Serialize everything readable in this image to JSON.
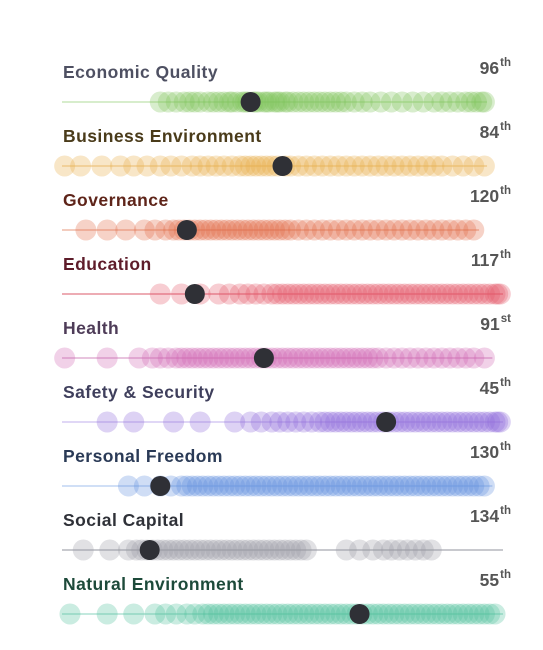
{
  "chart_data": {
    "type": "scatter",
    "title": "",
    "x_axis_direction": "rank 167 on the left, rank 1 on the right",
    "x_range": [
      167,
      1
    ],
    "highlight_color": "#2f3036",
    "rows": [
      {
        "label": "Economic Quality",
        "rank_num": "96",
        "rank_suffix": "th",
        "rank": 96,
        "color": "#7fc45a",
        "label_color": "#4e5062",
        "line_color": "#bfe2ad",
        "line_from": 167,
        "line_to": 7,
        "points": [
          130,
          127,
          124,
          121,
          119,
          117,
          115,
          112,
          110,
          108,
          106,
          104,
          103,
          101,
          99,
          98,
          97,
          95,
          94,
          93,
          91,
          90,
          89,
          87,
          86,
          85,
          83,
          82,
          80,
          78,
          76,
          74,
          72,
          70,
          68,
          66,
          64,
          62,
          60,
          57,
          54,
          51,
          47,
          43,
          39,
          35,
          31,
          27,
          24,
          21,
          18,
          15,
          13,
          11,
          9,
          8
        ]
      },
      {
        "label": "Business Environment",
        "rank_num": "84",
        "rank_suffix": "th",
        "rank": 84,
        "color": "#e8ad45",
        "label_color": "#4a3b1a",
        "line_color": "#f0cf96",
        "line_from": 167,
        "line_to": 7,
        "points": [
          166,
          160,
          152,
          145,
          140,
          135,
          130,
          126,
          122,
          118,
          115,
          112,
          109,
          106,
          103,
          100,
          98,
          96,
          94,
          92,
          90,
          88,
          86,
          83,
          81,
          78,
          75,
          72,
          69,
          66,
          63,
          60,
          57,
          54,
          51,
          48,
          45,
          42,
          39,
          36,
          33,
          30,
          27,
          24,
          20,
          16,
          12,
          8
        ]
      },
      {
        "label": "Governance",
        "rank_num": "120",
        "rank_suffix": "th",
        "rank": 120,
        "color": "#e06a45",
        "label_color": "#5e2419",
        "line_color": "#ecae98",
        "line_from": 167,
        "line_to": 10,
        "points": [
          158,
          150,
          143,
          136,
          132,
          128,
          125,
          123,
          121,
          119,
          117,
          115,
          113,
          111,
          109,
          107,
          105,
          103,
          101,
          99,
          97,
          95,
          93,
          91,
          89,
          87,
          85,
          83,
          81,
          78,
          75,
          72,
          69,
          66,
          63,
          60,
          57,
          54,
          51,
          48,
          45,
          42,
          39,
          36,
          33,
          30,
          27,
          24,
          21,
          18,
          15,
          12
        ]
      },
      {
        "label": "Education",
        "rank_num": "117",
        "rank_suffix": "th",
        "rank": 117,
        "color": "#e4596a",
        "label_color": "#5e1c2a",
        "line_color": "#e27a88",
        "line_from": 167,
        "line_to": 1,
        "points": [
          130,
          122,
          115,
          108,
          104,
          100,
          97,
          94,
          91,
          88,
          86,
          84,
          82,
          80,
          78,
          76,
          74,
          72,
          70,
          68,
          66,
          64,
          62,
          60,
          58,
          56,
          54,
          52,
          50,
          48,
          46,
          44,
          42,
          40,
          38,
          36,
          34,
          32,
          30,
          28,
          26,
          24,
          22,
          20,
          18,
          16,
          14,
          12,
          10,
          8,
          6,
          4,
          3,
          2
        ]
      },
      {
        "label": "Health",
        "rank_num": "91",
        "rank_suffix": "st",
        "rank": 91,
        "color": "#cf68b2",
        "label_color": "#4e3c58",
        "line_color": "#d9a0cb",
        "line_from": 167,
        "line_to": 5,
        "points": [
          166,
          150,
          138,
          133,
          130,
          127,
          124,
          122,
          120,
          118,
          116,
          114,
          112,
          110,
          108,
          106,
          104,
          102,
          100,
          98,
          96,
          94,
          92,
          90,
          88,
          86,
          84,
          82,
          80,
          78,
          76,
          74,
          72,
          70,
          68,
          66,
          64,
          62,
          60,
          58,
          56,
          54,
          52,
          50,
          48,
          45,
          42,
          39,
          36,
          33,
          30,
          27,
          24,
          21,
          18,
          15,
          12,
          8
        ]
      },
      {
        "label": "Safety & Security",
        "rank_num": "45",
        "rank_suffix": "th",
        "rank": 45,
        "color": "#8e6bd9",
        "label_color": "#3f3f5c",
        "line_color": "#cdbff0",
        "line_from": 167,
        "line_to": 1,
        "points": [
          150,
          140,
          125,
          115,
          102,
          96,
          92,
          88,
          85,
          82,
          79,
          76,
          73,
          70,
          68,
          66,
          64,
          62,
          60,
          58,
          56,
          54,
          52,
          50,
          48,
          46,
          44,
          42,
          40,
          38,
          36,
          34,
          32,
          30,
          28,
          26,
          24,
          22,
          20,
          18,
          16,
          14,
          12,
          10,
          8,
          6,
          4,
          3,
          2
        ]
      },
      {
        "label": "Personal Freedom",
        "rank_num": "130",
        "rank_suffix": "th",
        "rank": 130,
        "color": "#5f8fde",
        "label_color": "#2a3a56",
        "line_color": "#b5ccf0",
        "line_from": 167,
        "line_to": 5,
        "points": [
          142,
          136,
          130,
          126,
          122,
          120,
          118,
          116,
          114,
          112,
          110,
          108,
          106,
          104,
          102,
          100,
          98,
          96,
          94,
          92,
          90,
          88,
          86,
          84,
          82,
          80,
          78,
          76,
          74,
          72,
          70,
          68,
          66,
          64,
          62,
          60,
          58,
          56,
          54,
          52,
          50,
          48,
          46,
          44,
          42,
          40,
          38,
          36,
          34,
          32,
          30,
          28,
          26,
          24,
          22,
          20,
          18,
          16,
          14,
          12,
          10,
          8
        ]
      },
      {
        "label": "Social Capital",
        "rank_num": "134",
        "rank_suffix": "th",
        "rank": 134,
        "color": "#9a9da6",
        "label_color": "#2f3138",
        "line_color": "#a6a9b0",
        "line_from": 167,
        "line_to": 1,
        "points": [
          159,
          149,
          142,
          139,
          137,
          135,
          133,
          131,
          129,
          127,
          125,
          123,
          121,
          119,
          117,
          115,
          113,
          111,
          109,
          107,
          105,
          103,
          101,
          99,
          97,
          95,
          93,
          91,
          89,
          87,
          85,
          83,
          81,
          79,
          77,
          75,
          60,
          55,
          50,
          46,
          43,
          40,
          37,
          34,
          31,
          28
        ]
      },
      {
        "label": "Natural Environment",
        "rank_num": "55",
        "rank_suffix": "th",
        "rank": 55,
        "color": "#4fbf9c",
        "label_color": "#1d4a3a",
        "line_color": "#9fdcc9",
        "line_from": 167,
        "line_to": 1,
        "points": [
          164,
          150,
          140,
          132,
          128,
          124,
          120,
          117,
          114,
          112,
          110,
          108,
          106,
          104,
          102,
          100,
          98,
          96,
          94,
          92,
          90,
          88,
          86,
          84,
          82,
          80,
          78,
          76,
          74,
          72,
          70,
          68,
          66,
          64,
          62,
          60,
          58,
          56,
          54,
          52,
          50,
          48,
          46,
          44,
          42,
          40,
          38,
          36,
          34,
          32,
          30,
          28,
          26,
          24,
          22,
          20,
          18,
          16,
          14,
          12,
          10,
          8,
          6,
          4
        ]
      }
    ]
  }
}
